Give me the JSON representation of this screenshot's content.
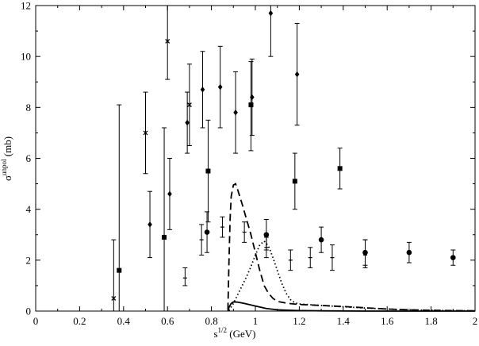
{
  "chart_data": {
    "type": "scatter",
    "xlabel": {
      "base": "s",
      "sup": "1/2",
      "unit": " (GeV)"
    },
    "ylabel": {
      "base": "σ",
      "sup": "unpol",
      "unit": " (mb)"
    },
    "xlim": [
      0,
      2
    ],
    "ylim": [
      0,
      12
    ],
    "xticks": [
      0,
      0.2,
      0.4,
      0.6,
      0.8,
      1,
      1.2,
      1.4,
      1.6,
      1.8,
      2
    ],
    "xtick_labels": [
      "0",
      "0.2",
      "0.4",
      "0.6",
      "0.8",
      "1",
      "1.2",
      "1.4",
      "1.6",
      "1.8",
      "2"
    ],
    "yticks": [
      0,
      2,
      4,
      6,
      8,
      10,
      12
    ],
    "ytick_labels": [
      "0",
      "2",
      "4",
      "6",
      "8",
      "10",
      "12"
    ],
    "grid": false,
    "series": [
      {
        "marker": "x",
        "color": "#000000",
        "points": [
          {
            "x": 0.355,
            "y": 0.5,
            "lo": 0.0,
            "hi": 2.8
          },
          {
            "x": 0.5,
            "y": 7.0,
            "lo": 5.4,
            "hi": 8.6
          },
          {
            "x": 0.6,
            "y": 10.6,
            "lo": 9.1,
            "hi": 12.0
          },
          {
            "x": 0.7,
            "y": 8.1,
            "lo": 6.5,
            "hi": 9.7
          }
        ]
      },
      {
        "marker": "diamond",
        "color": "#000000",
        "points": [
          {
            "x": 0.52,
            "y": 3.4,
            "lo": 2.1,
            "hi": 4.7
          },
          {
            "x": 0.61,
            "y": 4.6,
            "lo": 3.2,
            "hi": 6.0
          },
          {
            "x": 0.69,
            "y": 7.4,
            "lo": 6.2,
            "hi": 8.6
          },
          {
            "x": 0.76,
            "y": 8.7,
            "lo": 7.2,
            "hi": 10.2
          },
          {
            "x": 0.84,
            "y": 8.8,
            "lo": 7.2,
            "hi": 10.4
          },
          {
            "x": 0.91,
            "y": 7.8,
            "lo": 6.2,
            "hi": 9.4
          },
          {
            "x": 0.985,
            "y": 8.4,
            "lo": 6.9,
            "hi": 9.9
          },
          {
            "x": 1.07,
            "y": 11.7,
            "lo": 10.0,
            "hi": 12.0
          },
          {
            "x": 1.19,
            "y": 9.3,
            "lo": 7.3,
            "hi": 11.3
          }
        ]
      },
      {
        "marker": "square",
        "color": "#000000",
        "points": [
          {
            "x": 0.38,
            "y": 1.6,
            "lo": 0.0,
            "hi": 8.1
          },
          {
            "x": 0.585,
            "y": 2.9,
            "lo": 0.0,
            "hi": 7.2
          },
          {
            "x": 0.785,
            "y": 5.5,
            "lo": 3.5,
            "hi": 7.5
          },
          {
            "x": 0.98,
            "y": 8.1,
            "lo": 6.3,
            "hi": 9.8
          },
          {
            "x": 1.18,
            "y": 5.1,
            "lo": 4.0,
            "hi": 6.2
          },
          {
            "x": 1.385,
            "y": 5.6,
            "lo": 4.8,
            "hi": 6.4
          }
        ]
      },
      {
        "marker": "circle",
        "color": "#000000",
        "points": [
          {
            "x": 0.78,
            "y": 3.1,
            "lo": 2.3,
            "hi": 3.9
          },
          {
            "x": 1.05,
            "y": 3.0,
            "lo": 2.4,
            "hi": 3.6
          },
          {
            "x": 1.3,
            "y": 2.8,
            "lo": 2.3,
            "hi": 3.3
          },
          {
            "x": 1.5,
            "y": 2.3,
            "lo": 1.8,
            "hi": 2.8
          },
          {
            "x": 1.7,
            "y": 2.3,
            "lo": 1.9,
            "hi": 2.7
          },
          {
            "x": 1.9,
            "y": 2.1,
            "lo": 1.8,
            "hi": 2.4
          }
        ]
      },
      {
        "marker": "plus",
        "color": "#000000",
        "points": [
          {
            "x": 0.68,
            "y": 1.3,
            "lo": 1.0,
            "hi": 1.7
          },
          {
            "x": 0.755,
            "y": 2.8,
            "lo": 2.2,
            "hi": 3.4
          },
          {
            "x": 0.85,
            "y": 3.3,
            "lo": 2.9,
            "hi": 3.7
          },
          {
            "x": 0.95,
            "y": 3.1,
            "lo": 2.7,
            "hi": 3.5
          },
          {
            "x": 1.05,
            "y": 2.5,
            "lo": 2.1,
            "hi": 2.9
          },
          {
            "x": 1.16,
            "y": 2.0,
            "lo": 1.6,
            "hi": 2.4
          },
          {
            "x": 1.25,
            "y": 2.1,
            "lo": 1.7,
            "hi": 2.5
          },
          {
            "x": 1.35,
            "y": 2.1,
            "lo": 1.6,
            "hi": 2.6
          },
          {
            "x": 1.5,
            "y": 2.2,
            "lo": 1.7,
            "hi": 2.8
          }
        ]
      }
    ],
    "curves": [
      {
        "style": "dashed",
        "color": "#000000",
        "points": [
          [
            0.875,
            0.05
          ],
          [
            0.88,
            2.0
          ],
          [
            0.885,
            3.6
          ],
          [
            0.89,
            4.5
          ],
          [
            0.9,
            4.95
          ],
          [
            0.91,
            5.0
          ],
          [
            0.92,
            4.75
          ],
          [
            0.94,
            4.2
          ],
          [
            0.96,
            3.6
          ],
          [
            0.98,
            3.0
          ],
          [
            1.0,
            2.3
          ],
          [
            1.02,
            1.6
          ],
          [
            1.04,
            1.0
          ],
          [
            1.06,
            0.7
          ],
          [
            1.08,
            0.5
          ],
          [
            1.1,
            0.38
          ],
          [
            1.15,
            0.3
          ],
          [
            1.2,
            0.26
          ],
          [
            1.3,
            0.22
          ],
          [
            1.4,
            0.18
          ],
          [
            1.5,
            0.13
          ],
          [
            1.6,
            0.08
          ],
          [
            1.7,
            0.05
          ],
          [
            1.8,
            0.03
          ],
          [
            1.9,
            0.02
          ],
          [
            2.0,
            0.01
          ]
        ]
      },
      {
        "style": "dotted",
        "color": "#000000",
        "points": [
          [
            0.88,
            0.02
          ],
          [
            0.9,
            0.3
          ],
          [
            0.92,
            0.65
          ],
          [
            0.94,
            1.0
          ],
          [
            0.96,
            1.35
          ],
          [
            0.98,
            1.75
          ],
          [
            1.0,
            2.2
          ],
          [
            1.02,
            2.6
          ],
          [
            1.04,
            2.75
          ],
          [
            1.06,
            2.55
          ],
          [
            1.08,
            2.1
          ],
          [
            1.1,
            1.6
          ],
          [
            1.12,
            1.1
          ],
          [
            1.14,
            0.7
          ],
          [
            1.16,
            0.45
          ],
          [
            1.18,
            0.32
          ],
          [
            1.2,
            0.28
          ],
          [
            1.3,
            0.22
          ],
          [
            1.4,
            0.17
          ],
          [
            1.5,
            0.12
          ],
          [
            1.6,
            0.08
          ],
          [
            1.7,
            0.05
          ],
          [
            1.8,
            0.03
          ],
          [
            1.9,
            0.02
          ],
          [
            2.0,
            0.01
          ]
        ]
      },
      {
        "style": "solid",
        "color": "#000000",
        "points": [
          [
            0.875,
            0.0
          ],
          [
            0.88,
            0.15
          ],
          [
            0.89,
            0.3
          ],
          [
            0.9,
            0.36
          ],
          [
            0.92,
            0.35
          ],
          [
            0.95,
            0.3
          ],
          [
            1.0,
            0.2
          ],
          [
            1.05,
            0.1
          ],
          [
            1.1,
            0.05
          ],
          [
            1.2,
            0.02
          ],
          [
            1.3,
            0.01
          ],
          [
            1.5,
            0.0
          ],
          [
            2.0,
            0.0
          ]
        ]
      }
    ]
  }
}
